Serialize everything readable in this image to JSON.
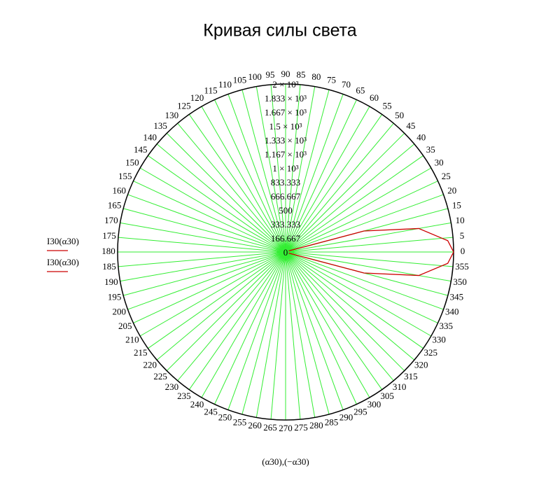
{
  "chart_data": {
    "type": "polar",
    "title": "Кривая силы света",
    "axis_label": "(α30),(−α30)",
    "rlim": [
      0,
      2000
    ],
    "rticks": [
      0,
      166.667,
      333.333,
      500,
      666.667,
      833.333,
      {
        "value": 1000,
        "label": "1 × 10³"
      },
      {
        "value": 1167,
        "label": "1.167 × 10³"
      },
      {
        "value": 1333,
        "label": "1.333 × 10³"
      },
      {
        "value": 1500,
        "label": "1.5 × 10³"
      },
      {
        "value": 1667,
        "label": "1.667 × 10³"
      },
      {
        "value": 1833,
        "label": "1.833 × 10³"
      },
      {
        "value": 2000,
        "label": "2 × 10³"
      }
    ],
    "thetaticks": [
      0,
      5,
      10,
      15,
      20,
      25,
      30,
      35,
      40,
      45,
      50,
      55,
      60,
      65,
      70,
      75,
      80,
      85,
      90,
      95,
      100,
      105,
      110,
      115,
      120,
      125,
      130,
      135,
      140,
      145,
      150,
      155,
      160,
      165,
      170,
      175,
      180,
      185,
      190,
      195,
      200,
      205,
      210,
      215,
      220,
      225,
      230,
      235,
      240,
      245,
      250,
      255,
      260,
      265,
      270,
      275,
      280,
      285,
      290,
      295,
      300,
      305,
      310,
      315,
      320,
      325,
      330,
      335,
      340,
      345,
      350,
      355
    ],
    "grid": true,
    "grid_color": "#33ee33",
    "series": [
      {
        "name": "I30(α30)",
        "color": "#cc0000",
        "theta": [
          0,
          4,
          10,
          15,
          20
        ],
        "values": [
          2000,
          1935,
          1610,
          965,
          40
        ]
      },
      {
        "name": "I30(α30)",
        "color": "#cc0000",
        "theta": [
          0,
          -4,
          -10,
          -15,
          -20
        ],
        "values": [
          2000,
          1935,
          1610,
          965,
          40
        ]
      }
    ]
  }
}
